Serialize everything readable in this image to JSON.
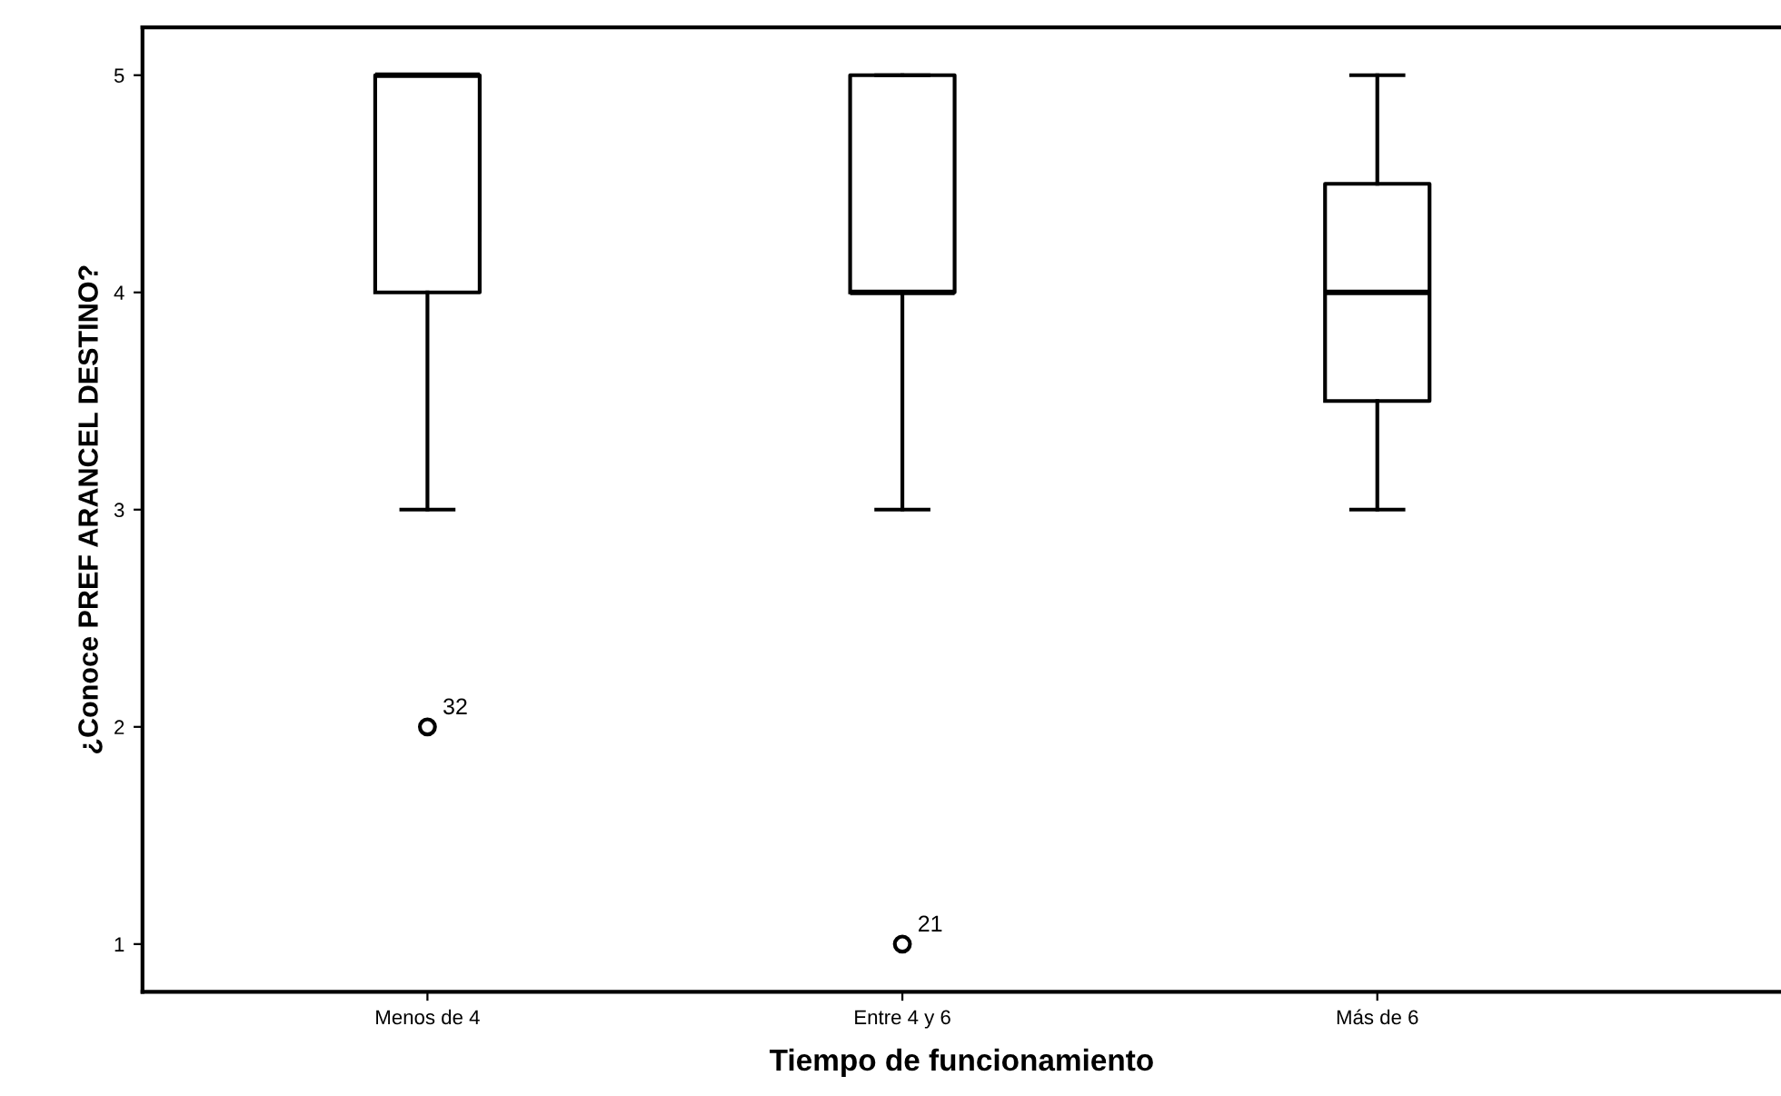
{
  "chart_data": {
    "type": "box",
    "xlabel": "Tiempo de funcionamiento",
    "ylabel": "¿Conoce PREF ARANCEL DESTINO?",
    "categories": [
      "Menos de 4",
      "Entre 4 y 6",
      "Más de 6"
    ],
    "boxes": [
      {
        "low": 3,
        "q1": 4,
        "median": 5,
        "q3": 5,
        "high": 5,
        "outliers": [
          2
        ]
      },
      {
        "low": 3,
        "q1": 4,
        "median": 4,
        "q3": 5,
        "high": 5,
        "outliers": [
          1
        ]
      },
      {
        "low": 3,
        "q1": 3.5,
        "median": 4,
        "q3": 4.5,
        "high": 5
      }
    ],
    "ylim": [
      0.78,
      5.22
    ],
    "yticks": [
      1,
      2,
      3,
      4,
      5
    ],
    "grid": false,
    "legend": false,
    "annotations": [
      "32",
      "21"
    ]
  }
}
